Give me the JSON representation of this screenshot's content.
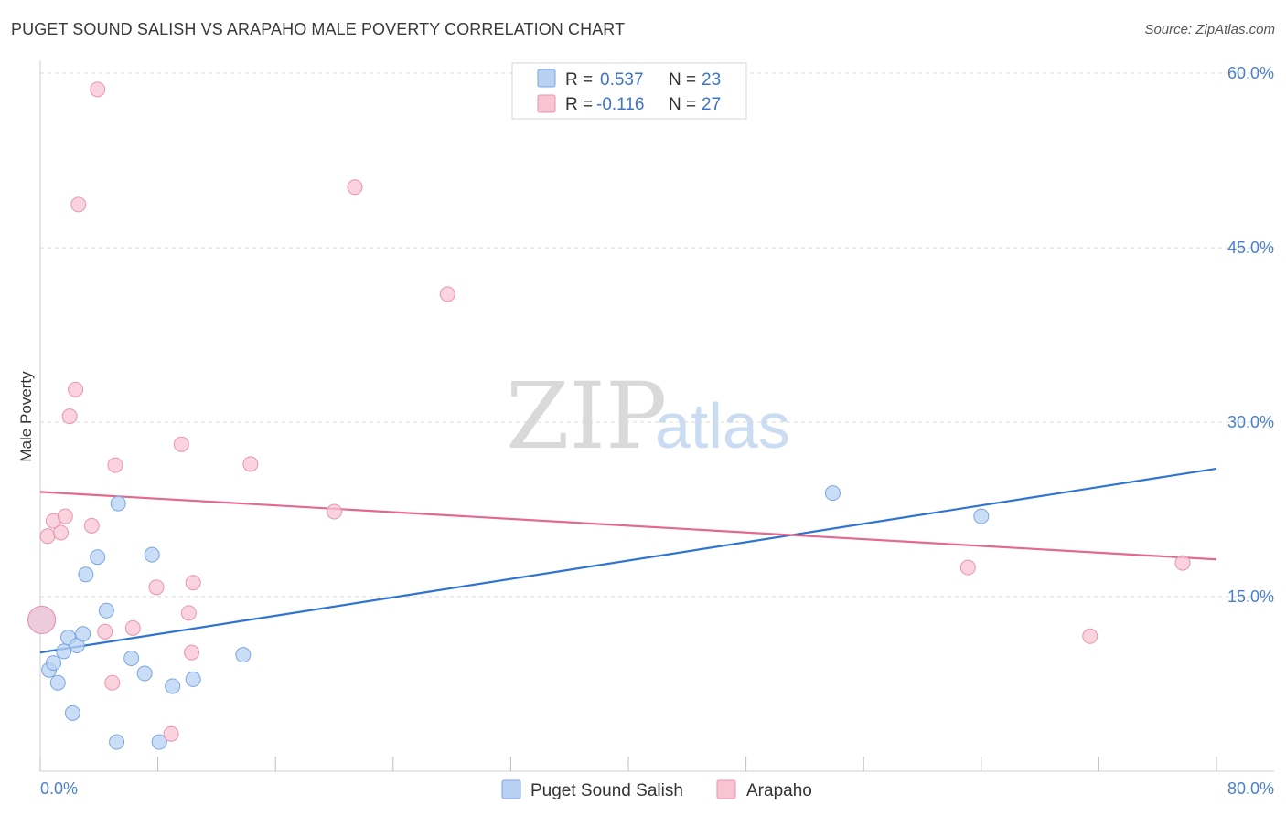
{
  "header": {
    "title": "PUGET SOUND SALISH VS ARAPAHO MALE POVERTY CORRELATION CHART",
    "source": "Source: ZipAtlas.com"
  },
  "watermark": {
    "zip": "ZIP",
    "atlas": "atlas"
  },
  "colors": {
    "blue_fill": "#b8d1f3",
    "blue_stroke": "#7aa6e0",
    "blue_line": "#2f74d0",
    "pink_fill": "#f8c4d3",
    "pink_stroke": "#e994ad",
    "pink_line": "#e2698f",
    "grid": "#d8d8d8",
    "tick_text": "#4a7fd0"
  },
  "legend": {
    "rows": [
      {
        "r_label": "R =",
        "r_value": "0.537",
        "n_label": "N =",
        "n_value": "23"
      },
      {
        "r_label": "R =",
        "r_value": "-0.116",
        "n_label": "N =",
        "n_value": "27"
      }
    ]
  },
  "bottom_legend": {
    "series1": "Puget Sound Salish",
    "series2": "Arapaho"
  },
  "chart_data": {
    "type": "scatter",
    "title": "PUGET SOUND SALISH VS ARAPAHO MALE POVERTY CORRELATION CHART",
    "xlabel": "",
    "ylabel": "Male Poverty",
    "xlim": [
      0,
      80
    ],
    "ylim": [
      0,
      60
    ],
    "x_tick_labels": {
      "left": "0.0%",
      "right": "80.0%"
    },
    "y_ticks": [
      {
        "value": 15,
        "label": "15.0%"
      },
      {
        "value": 30,
        "label": "30.0%"
      },
      {
        "value": 45,
        "label": "45.0%"
      },
      {
        "value": 60,
        "label": "60.0%"
      }
    ],
    "series": [
      {
        "name": "Puget Sound Salish",
        "r": 0.537,
        "n": 23,
        "trend": {
          "x0": 0,
          "y0": 10.2,
          "x1": 80,
          "y1": 26.0
        },
        "points": [
          {
            "x": 0.1,
            "y": 13.0,
            "big": true
          },
          {
            "x": 0.6,
            "y": 8.7
          },
          {
            "x": 0.9,
            "y": 9.3
          },
          {
            "x": 1.2,
            "y": 7.6
          },
          {
            "x": 1.6,
            "y": 10.3
          },
          {
            "x": 1.9,
            "y": 11.5
          },
          {
            "x": 2.2,
            "y": 5.0
          },
          {
            "x": 2.5,
            "y": 10.8
          },
          {
            "x": 2.9,
            "y": 11.8
          },
          {
            "x": 3.1,
            "y": 16.9
          },
          {
            "x": 3.9,
            "y": 18.4
          },
          {
            "x": 4.5,
            "y": 13.8
          },
          {
            "x": 5.2,
            "y": 2.5
          },
          {
            "x": 5.3,
            "y": 23.0
          },
          {
            "x": 6.2,
            "y": 9.7
          },
          {
            "x": 7.1,
            "y": 8.4
          },
          {
            "x": 7.6,
            "y": 18.6
          },
          {
            "x": 8.1,
            "y": 2.5
          },
          {
            "x": 9.0,
            "y": 7.3
          },
          {
            "x": 10.4,
            "y": 7.9
          },
          {
            "x": 13.8,
            "y": 10.0
          },
          {
            "x": 53.9,
            "y": 23.9
          },
          {
            "x": 64.0,
            "y": 21.9
          }
        ]
      },
      {
        "name": "Arapaho",
        "r": -0.116,
        "n": 27,
        "trend": {
          "x0": 0,
          "y0": 24.0,
          "x1": 80,
          "y1": 18.2
        },
        "points": [
          {
            "x": 0.1,
            "y": 13.0,
            "big": true
          },
          {
            "x": 0.5,
            "y": 20.2
          },
          {
            "x": 0.9,
            "y": 21.5
          },
          {
            "x": 1.4,
            "y": 20.5
          },
          {
            "x": 1.7,
            "y": 21.9
          },
          {
            "x": 2.0,
            "y": 30.5
          },
          {
            "x": 2.4,
            "y": 32.8
          },
          {
            "x": 2.6,
            "y": 48.7
          },
          {
            "x": 3.5,
            "y": 21.1
          },
          {
            "x": 3.9,
            "y": 58.6
          },
          {
            "x": 4.4,
            "y": 12.0
          },
          {
            "x": 4.9,
            "y": 7.6
          },
          {
            "x": 5.1,
            "y": 26.3
          },
          {
            "x": 6.3,
            "y": 12.3
          },
          {
            "x": 7.9,
            "y": 15.8
          },
          {
            "x": 8.9,
            "y": 3.2
          },
          {
            "x": 9.6,
            "y": 28.1
          },
          {
            "x": 10.1,
            "y": 13.6
          },
          {
            "x": 10.3,
            "y": 10.2
          },
          {
            "x": 10.4,
            "y": 16.2
          },
          {
            "x": 14.3,
            "y": 26.4
          },
          {
            "x": 20.0,
            "y": 22.3
          },
          {
            "x": 21.4,
            "y": 50.2
          },
          {
            "x": 27.7,
            "y": 41.0
          },
          {
            "x": 63.1,
            "y": 17.5
          },
          {
            "x": 71.4,
            "y": 11.6
          },
          {
            "x": 77.7,
            "y": 17.9
          }
        ]
      }
    ]
  }
}
